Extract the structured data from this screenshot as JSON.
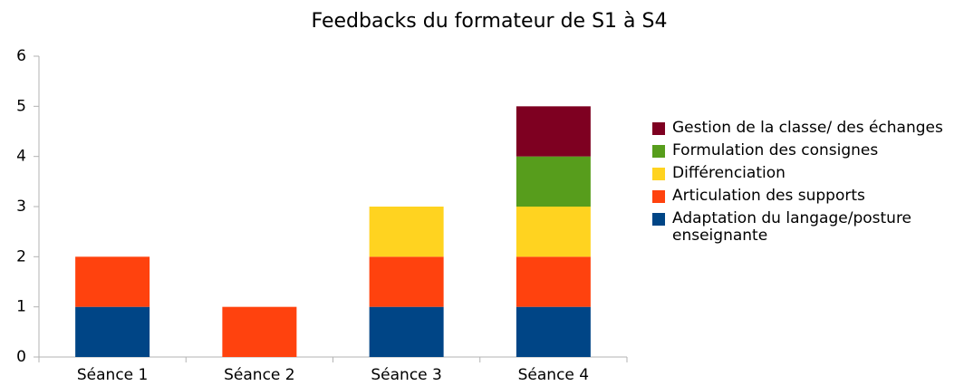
{
  "chart_data": {
    "type": "stacked_bar",
    "title": "Feedbacks du formateur de S1 à S4",
    "categories": [
      "Séance 1",
      "Séance 2",
      "Séance 3",
      "Séance 4"
    ],
    "series": [
      {
        "name": "Adaptation du langage/posture enseignante",
        "color": "#004586",
        "values": [
          1,
          0,
          1,
          1
        ]
      },
      {
        "name": "Articulation des supports",
        "color": "#ff420e",
        "values": [
          1,
          1,
          1,
          1
        ]
      },
      {
        "name": "Différenciation",
        "color": "#ffd320",
        "values": [
          0,
          0,
          1,
          1
        ]
      },
      {
        "name": "Formulation des consignes",
        "color": "#579d1c",
        "values": [
          0,
          0,
          0,
          1
        ]
      },
      {
        "name": "Gestion de la classe/ des échanges",
        "color": "#7e0021",
        "values": [
          0,
          0,
          0,
          1
        ]
      }
    ],
    "ylim": [
      0,
      6
    ],
    "yticks": [
      0,
      1,
      2,
      3,
      4,
      5,
      6
    ],
    "legend": "right"
  }
}
